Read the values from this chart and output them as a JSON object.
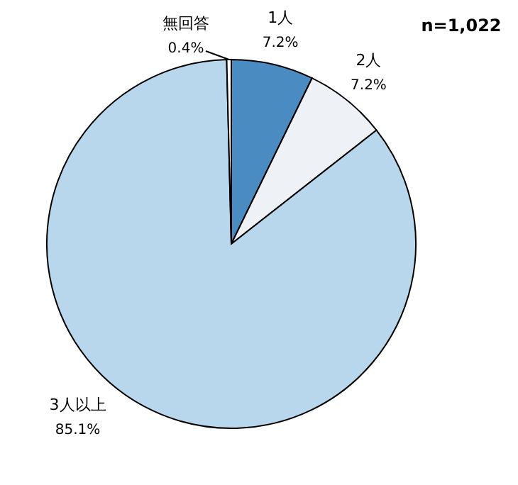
{
  "chart_data": {
    "type": "pie",
    "categories": [
      "1人",
      "2人",
      "3人以上",
      "無回答"
    ],
    "values": [
      7.2,
      7.2,
      85.1,
      0.4
    ],
    "value_labels": [
      "7.2%",
      "7.2%",
      "85.1%",
      "0.4%"
    ],
    "colors": [
      "#4a8cc2",
      "#eef2f6",
      "#b9d7ec",
      "#ffffff"
    ],
    "annotations": [
      "n=1,022"
    ]
  }
}
